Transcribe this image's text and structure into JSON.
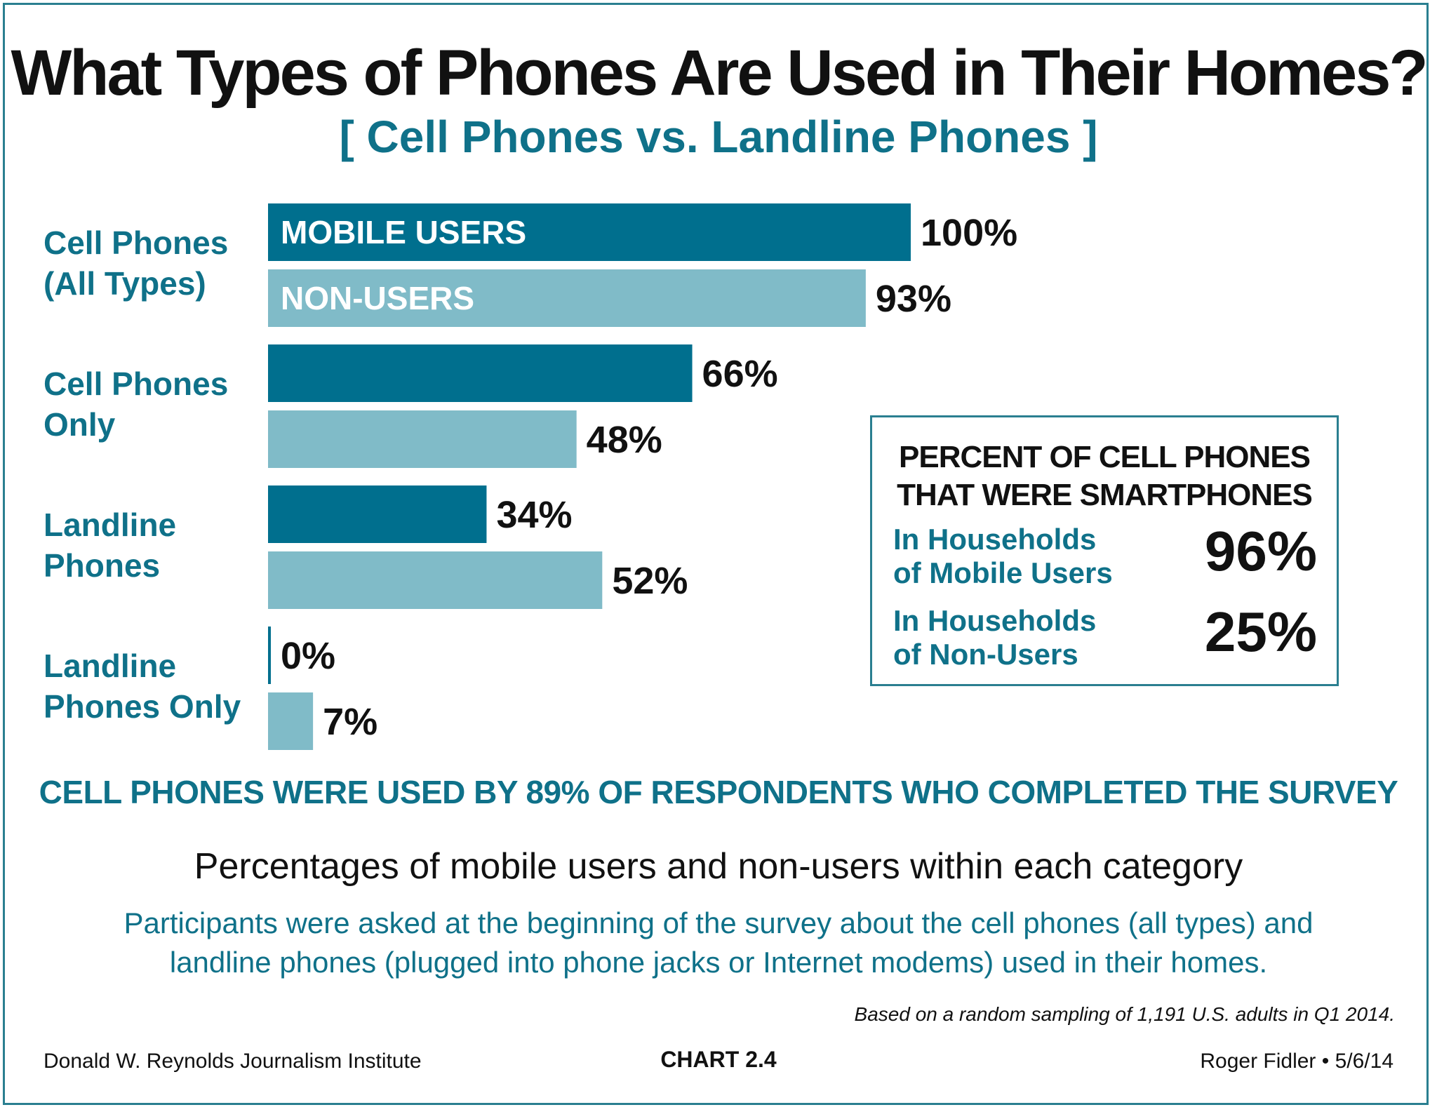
{
  "title": "What Types of Phones Are Used in Their Homes?",
  "subtitle": "[ Cell Phones vs. Landline Phones ]",
  "chart_data": {
    "type": "bar",
    "orientation": "horizontal",
    "categories": [
      [
        "Cell Phones",
        "(All Types)"
      ],
      [
        "Cell Phones",
        "Only"
      ],
      [
        "Landline",
        "Phones"
      ],
      [
        "Landline",
        "Phones Only"
      ]
    ],
    "series": [
      {
        "name": "MOBILE USERS",
        "color": "#006f8e",
        "values": [
          100,
          66,
          34,
          0
        ],
        "labels": [
          "100%",
          "66%",
          "34%",
          "0%"
        ]
      },
      {
        "name": "NON-USERS",
        "color": "#80bbc8",
        "values": [
          93,
          48,
          52,
          7
        ],
        "labels": [
          "93%",
          "48%",
          "52%",
          "7%"
        ]
      }
    ],
    "xlim": [
      0,
      100
    ]
  },
  "inset": {
    "title_lines": [
      "PERCENT OF CELL PHONES",
      "THAT WERE SMARTPHONES"
    ],
    "rows": [
      {
        "label_lines": [
          "In Households",
          "of Mobile Users"
        ],
        "value": "96%"
      },
      {
        "label_lines": [
          "In Households",
          "of Non-Users"
        ],
        "value": "25%"
      }
    ]
  },
  "banner": "CELL PHONES WERE USED BY 89% OF RESPONDENTS WHO COMPLETED THE SURVEY",
  "description": {
    "main": "Percentages of mobile users and non-users within each category",
    "sub_lines": [
      "Participants were asked at the beginning of the survey about the cell phones (all types) and",
      "landline phones (plugged into phone jacks or Internet modems) used in their homes."
    ]
  },
  "source_note": "Based on a random sampling of 1,191 U.S. adults in Q1 2014.",
  "footer": {
    "left": "Donald W. Reynolds Journalism Institute",
    "center_prefix": "CHART ",
    "center_number": "2.4",
    "right": "Roger Fidler • 5/6/14"
  }
}
